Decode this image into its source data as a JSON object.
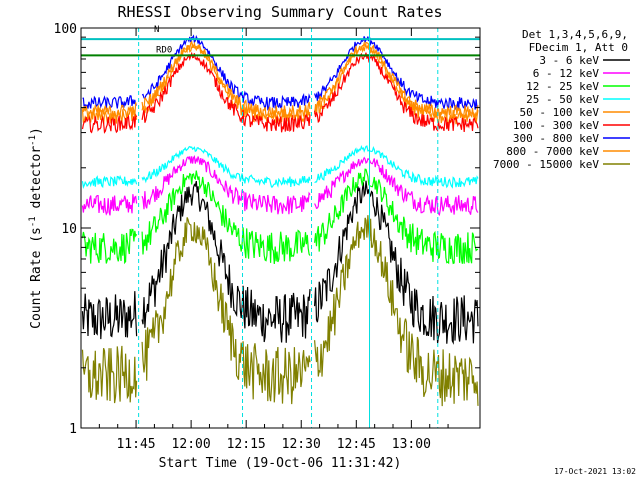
{
  "chart_data": {
    "type": "line",
    "title": "RHESSI Observing Summary Count Rates",
    "xlabel": "Start Time (19-Oct-06 11:31:42)",
    "ylabel_main": "Count Rate (s",
    "ylabel_sup1": "-1",
    "ylabel_mid": " detector",
    "ylabel_sup2": "-1",
    "ylabel_end": ")",
    "yscale": "log",
    "ylim": [
      1,
      100
    ],
    "xlim_minutes": [
      690.0,
      798.7
    ],
    "x_ticks": [
      {
        "minute": 705,
        "label": "11:45"
      },
      {
        "minute": 720,
        "label": "12:00"
      },
      {
        "minute": 735,
        "label": "12:15"
      },
      {
        "minute": 750,
        "label": "12:30"
      },
      {
        "minute": 765,
        "label": "12:45"
      },
      {
        "minute": 780,
        "label": "13:00"
      }
    ],
    "y_ticks": [
      {
        "value": 1,
        "label": "1"
      },
      {
        "value": 10,
        "label": "10"
      },
      {
        "value": 100,
        "label": "100"
      }
    ],
    "legend_header": [
      "Det 1,3,4,5,6,9,",
      "FDecim 1, Att 0"
    ],
    "legend_placement": "right",
    "series": [
      {
        "name": "3 - 6 keV",
        "color": "#000000",
        "day": 15,
        "night": 3.5,
        "night_spread": 1.0
      },
      {
        "name": "6 - 12 keV",
        "color": "#ff00ff",
        "day": 22,
        "night": 13,
        "night_spread": 1.5
      },
      {
        "name": "12 - 25 keV",
        "color": "#00ff00",
        "day": 18,
        "night": 8,
        "night_spread": 1.5
      },
      {
        "name": "25 - 50 keV",
        "color": "#00ffff",
        "day": 25,
        "night": 17,
        "night_spread": 1.0
      },
      {
        "name": "50 - 100 keV",
        "color": "#ff8c00",
        "day": 80,
        "night": 36,
        "night_spread": 3.0
      },
      {
        "name": "100 - 300 keV",
        "color": "#ff0000",
        "day": 72,
        "night": 33,
        "night_spread": 3.0
      },
      {
        "name": "300 - 800 keV",
        "color": "#0000ff",
        "day": 88,
        "night": 42,
        "night_spread": 3.0
      },
      {
        "name": "800 - 7000 keV",
        "color": "#ff8c00",
        "day": 82,
        "night": 38,
        "night_spread": 3.0
      },
      {
        "name": "7000 - 15000 keV",
        "color": "#808000",
        "day": 10,
        "night": 1.8,
        "night_spread": 0.6
      }
    ],
    "orbit_peaks_minutes": [
      720.5,
      767.5
    ],
    "data_gaps_minutes": [
      [
        705.3,
        706.5
      ],
      [
        752.5,
        753.5
      ]
    ],
    "flags": [
      {
        "label": "RD0",
        "color": "#008000",
        "value": 73
      },
      {
        "label": "N",
        "color": "#00c0c0",
        "value": 88
      }
    ],
    "vertical_markers_minutes": [
      690.0,
      705.7,
      734.0,
      752.8,
      768.6,
      787.2
    ],
    "timestamp": "17-Oct-2021 13:02"
  }
}
